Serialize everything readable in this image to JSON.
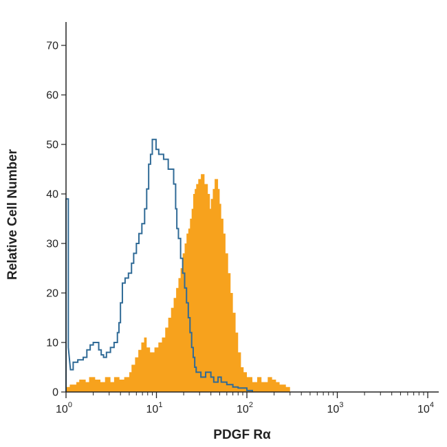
{
  "chart_data": {
    "type": "histogram",
    "title": "",
    "xlabel": "PDGF Rα",
    "ylabel": "Relative Cell Number",
    "x_scale": "log",
    "xlim": [
      1,
      10000
    ],
    "ylim": [
      0,
      75
    ],
    "x_major_ticks": [
      1,
      10,
      100,
      1000,
      10000
    ],
    "x_tick_labels": [
      {
        "base": "10",
        "exp": "0"
      },
      {
        "base": "10",
        "exp": "1"
      },
      {
        "base": "10",
        "exp": "2"
      },
      {
        "base": "10",
        "exp": "3"
      },
      {
        "base": "10",
        "exp": "4"
      }
    ],
    "y_ticks": [
      0,
      10,
      20,
      30,
      40,
      50,
      60,
      70
    ],
    "grid": false,
    "series": [
      {
        "style": "outline",
        "color": "#2f6a96",
        "points": [
          [
            1.0,
            0
          ],
          [
            1.0,
            39
          ],
          [
            1.06,
            39
          ],
          [
            1.06,
            9
          ],
          [
            1.12,
            4.5
          ],
          [
            1.2,
            4.5
          ],
          [
            1.2,
            6
          ],
          [
            1.35,
            6
          ],
          [
            1.35,
            6.5
          ],
          [
            1.55,
            6.5
          ],
          [
            1.55,
            7
          ],
          [
            1.7,
            7
          ],
          [
            1.7,
            8.5
          ],
          [
            1.85,
            8.5
          ],
          [
            1.85,
            9.5
          ],
          [
            2.0,
            9.5
          ],
          [
            2.0,
            10
          ],
          [
            2.15,
            10
          ],
          [
            2.3,
            10
          ],
          [
            2.3,
            8.5
          ],
          [
            2.45,
            8.5
          ],
          [
            2.45,
            7.5
          ],
          [
            2.6,
            7.5
          ],
          [
            2.6,
            7
          ],
          [
            2.8,
            7
          ],
          [
            2.8,
            8
          ],
          [
            3.1,
            8
          ],
          [
            3.1,
            9
          ],
          [
            3.4,
            9
          ],
          [
            3.4,
            10
          ],
          [
            3.7,
            10
          ],
          [
            3.7,
            12
          ],
          [
            3.85,
            12
          ],
          [
            3.85,
            14
          ],
          [
            4.0,
            14
          ],
          [
            4.0,
            18
          ],
          [
            4.2,
            18
          ],
          [
            4.2,
            22
          ],
          [
            4.5,
            22
          ],
          [
            4.5,
            23
          ],
          [
            4.9,
            23
          ],
          [
            4.9,
            24
          ],
          [
            5.3,
            24
          ],
          [
            5.3,
            26
          ],
          [
            5.6,
            26
          ],
          [
            5.6,
            28
          ],
          [
            6.0,
            28
          ],
          [
            6.0,
            30
          ],
          [
            6.4,
            30
          ],
          [
            6.4,
            32
          ],
          [
            6.9,
            32
          ],
          [
            6.9,
            34
          ],
          [
            7.4,
            34
          ],
          [
            7.4,
            37
          ],
          [
            7.8,
            37
          ],
          [
            7.8,
            41
          ],
          [
            8.2,
            41
          ],
          [
            8.2,
            46
          ],
          [
            8.6,
            46
          ],
          [
            8.6,
            48
          ],
          [
            9.0,
            48
          ],
          [
            9.0,
            51
          ],
          [
            9.9,
            51
          ],
          [
            9.9,
            49
          ],
          [
            10.6,
            49
          ],
          [
            10.6,
            48
          ],
          [
            12.0,
            48
          ],
          [
            12.0,
            47
          ],
          [
            13.5,
            47
          ],
          [
            13.5,
            45
          ],
          [
            15.5,
            45
          ],
          [
            15.5,
            42
          ],
          [
            16.3,
            42
          ],
          [
            16.3,
            37
          ],
          [
            16.8,
            37
          ],
          [
            16.8,
            33
          ],
          [
            17.5,
            33
          ],
          [
            17.5,
            31
          ],
          [
            18.5,
            31
          ],
          [
            18.5,
            27
          ],
          [
            19.5,
            27
          ],
          [
            19.5,
            24
          ],
          [
            20.5,
            24
          ],
          [
            20.5,
            21
          ],
          [
            21.5,
            21
          ],
          [
            21.5,
            18
          ],
          [
            22.5,
            18
          ],
          [
            22.5,
            15
          ],
          [
            23.5,
            15
          ],
          [
            23.5,
            12
          ],
          [
            24.5,
            12
          ],
          [
            24.5,
            9
          ],
          [
            25.5,
            9
          ],
          [
            25.5,
            7
          ],
          [
            26.5,
            7
          ],
          [
            26.5,
            5
          ],
          [
            27.5,
            5
          ],
          [
            27.5,
            4
          ],
          [
            31,
            4
          ],
          [
            31,
            3
          ],
          [
            35,
            3
          ],
          [
            35,
            4
          ],
          [
            40,
            4
          ],
          [
            40,
            3
          ],
          [
            43,
            3
          ],
          [
            43,
            2
          ],
          [
            48,
            2
          ],
          [
            48,
            3
          ],
          [
            52,
            3
          ],
          [
            52,
            2
          ],
          [
            60,
            2
          ],
          [
            60,
            1.5
          ],
          [
            70,
            1.5
          ],
          [
            70,
            1
          ],
          [
            80,
            1
          ],
          [
            80,
            0.8
          ],
          [
            100,
            0.8
          ],
          [
            100,
            0.3
          ],
          [
            115,
            0.3
          ],
          [
            115,
            0
          ]
        ]
      },
      {
        "style": "filled",
        "color": "#f7a21d",
        "points": [
          [
            1.0,
            0
          ],
          [
            1.0,
            1
          ],
          [
            1.1,
            1
          ],
          [
            1.1,
            1.5
          ],
          [
            1.3,
            1.5
          ],
          [
            1.3,
            2
          ],
          [
            1.4,
            2
          ],
          [
            1.4,
            2.5
          ],
          [
            1.65,
            2.5
          ],
          [
            1.65,
            2
          ],
          [
            1.8,
            2
          ],
          [
            1.8,
            3
          ],
          [
            2.1,
            3
          ],
          [
            2.1,
            2.5
          ],
          [
            2.4,
            2.5
          ],
          [
            2.4,
            2
          ],
          [
            2.7,
            2
          ],
          [
            2.7,
            3
          ],
          [
            3.1,
            3
          ],
          [
            3.1,
            2
          ],
          [
            3.4,
            2
          ],
          [
            3.4,
            3
          ],
          [
            3.9,
            3
          ],
          [
            3.9,
            2.5
          ],
          [
            4.4,
            2.5
          ],
          [
            4.4,
            3
          ],
          [
            5.0,
            3
          ],
          [
            5.0,
            4
          ],
          [
            5.3,
            4
          ],
          [
            5.3,
            5.5
          ],
          [
            5.8,
            5.5
          ],
          [
            5.8,
            7
          ],
          [
            6.3,
            7
          ],
          [
            6.3,
            8.5
          ],
          [
            6.8,
            8.5
          ],
          [
            6.8,
            10
          ],
          [
            7.3,
            10
          ],
          [
            7.3,
            11
          ],
          [
            7.8,
            11
          ],
          [
            7.8,
            9
          ],
          [
            8.5,
            9
          ],
          [
            8.5,
            8
          ],
          [
            9.5,
            8
          ],
          [
            9.5,
            9
          ],
          [
            10.5,
            9
          ],
          [
            10.5,
            10
          ],
          [
            11.5,
            10
          ],
          [
            11.5,
            11
          ],
          [
            12.5,
            11
          ],
          [
            12.5,
            13
          ],
          [
            13.5,
            13
          ],
          [
            13.5,
            15
          ],
          [
            14.5,
            15
          ],
          [
            14.5,
            17
          ],
          [
            15.5,
            17
          ],
          [
            15.5,
            19
          ],
          [
            16.5,
            19
          ],
          [
            16.5,
            21
          ],
          [
            17.5,
            21
          ],
          [
            17.5,
            23
          ],
          [
            18.5,
            23
          ],
          [
            18.5,
            25
          ],
          [
            19.5,
            25
          ],
          [
            19.5,
            28
          ],
          [
            20.5,
            28
          ],
          [
            20.5,
            30
          ],
          [
            21.5,
            30
          ],
          [
            21.5,
            32
          ],
          [
            22.5,
            32
          ],
          [
            22.5,
            33
          ],
          [
            23.5,
            33
          ],
          [
            23.5,
            35
          ],
          [
            24.5,
            35
          ],
          [
            24.5,
            37
          ],
          [
            25.5,
            37
          ],
          [
            25.5,
            40
          ],
          [
            26.5,
            40
          ],
          [
            26.5,
            41
          ],
          [
            27.5,
            41
          ],
          [
            27.5,
            42
          ],
          [
            29,
            42
          ],
          [
            29,
            43
          ],
          [
            31,
            43
          ],
          [
            31,
            44
          ],
          [
            34,
            44
          ],
          [
            34,
            42
          ],
          [
            37,
            42
          ],
          [
            37,
            40
          ],
          [
            39,
            40
          ],
          [
            39,
            37
          ],
          [
            40,
            37
          ],
          [
            40,
            39
          ],
          [
            42,
            39
          ],
          [
            42,
            41
          ],
          [
            44,
            41
          ],
          [
            44,
            43
          ],
          [
            48,
            43
          ],
          [
            48,
            41
          ],
          [
            50,
            41
          ],
          [
            50,
            38
          ],
          [
            52,
            38
          ],
          [
            52,
            35
          ],
          [
            55,
            35
          ],
          [
            55,
            32
          ],
          [
            58,
            32
          ],
          [
            58,
            28
          ],
          [
            62,
            28
          ],
          [
            62,
            24
          ],
          [
            66,
            24
          ],
          [
            66,
            20
          ],
          [
            70,
            20
          ],
          [
            70,
            16
          ],
          [
            75,
            16
          ],
          [
            75,
            12
          ],
          [
            80,
            12
          ],
          [
            80,
            8
          ],
          [
            86,
            8
          ],
          [
            86,
            5
          ],
          [
            92,
            5
          ],
          [
            92,
            4
          ],
          [
            100,
            4
          ],
          [
            100,
            3
          ],
          [
            115,
            3
          ],
          [
            115,
            2
          ],
          [
            130,
            2
          ],
          [
            130,
            3
          ],
          [
            145,
            3
          ],
          [
            145,
            2
          ],
          [
            170,
            2
          ],
          [
            170,
            3
          ],
          [
            190,
            3
          ],
          [
            190,
            2.5
          ],
          [
            210,
            2.5
          ],
          [
            210,
            2
          ],
          [
            230,
            2
          ],
          [
            230,
            1.5
          ],
          [
            270,
            1.5
          ],
          [
            270,
            1
          ],
          [
            300,
            1
          ],
          [
            300,
            0
          ]
        ]
      }
    ]
  }
}
